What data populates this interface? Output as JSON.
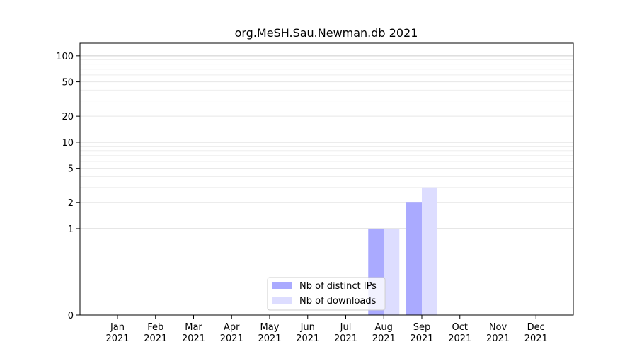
{
  "chart_data": {
    "type": "bar",
    "title": "org.MeSH.Sau.Newman.db 2021",
    "xlabel": "",
    "ylabel": "",
    "y_scale": "symlog",
    "ylim": [
      0,
      140
    ],
    "y_ticks": [
      {
        "value": 0,
        "label": "0"
      },
      {
        "value": 1,
        "label": "1"
      },
      {
        "value": 2,
        "label": "2"
      },
      {
        "value": 5,
        "label": "5"
      },
      {
        "value": 10,
        "label": "10"
      },
      {
        "value": 20,
        "label": "20"
      },
      {
        "value": 50,
        "label": "50"
      },
      {
        "value": 100,
        "label": "100"
      }
    ],
    "categories": [
      {
        "month": "Jan",
        "year": "2021"
      },
      {
        "month": "Feb",
        "year": "2021"
      },
      {
        "month": "Mar",
        "year": "2021"
      },
      {
        "month": "Apr",
        "year": "2021"
      },
      {
        "month": "May",
        "year": "2021"
      },
      {
        "month": "Jun",
        "year": "2021"
      },
      {
        "month": "Jul",
        "year": "2021"
      },
      {
        "month": "Aug",
        "year": "2021"
      },
      {
        "month": "Sep",
        "year": "2021"
      },
      {
        "month": "Oct",
        "year": "2021"
      },
      {
        "month": "Nov",
        "year": "2021"
      },
      {
        "month": "Dec",
        "year": "2021"
      }
    ],
    "series": [
      {
        "name": "Nb of distinct IPs",
        "color": "#aaaaff",
        "values": [
          0,
          0,
          0,
          0,
          0,
          0,
          0,
          1,
          2,
          0,
          0,
          0
        ]
      },
      {
        "name": "Nb of downloads",
        "color": "#ddddff",
        "values": [
          0,
          0,
          0,
          0,
          0,
          0,
          0,
          1,
          3,
          0,
          0,
          0
        ]
      }
    ],
    "grid": true,
    "legend_position": "bottom-center"
  }
}
